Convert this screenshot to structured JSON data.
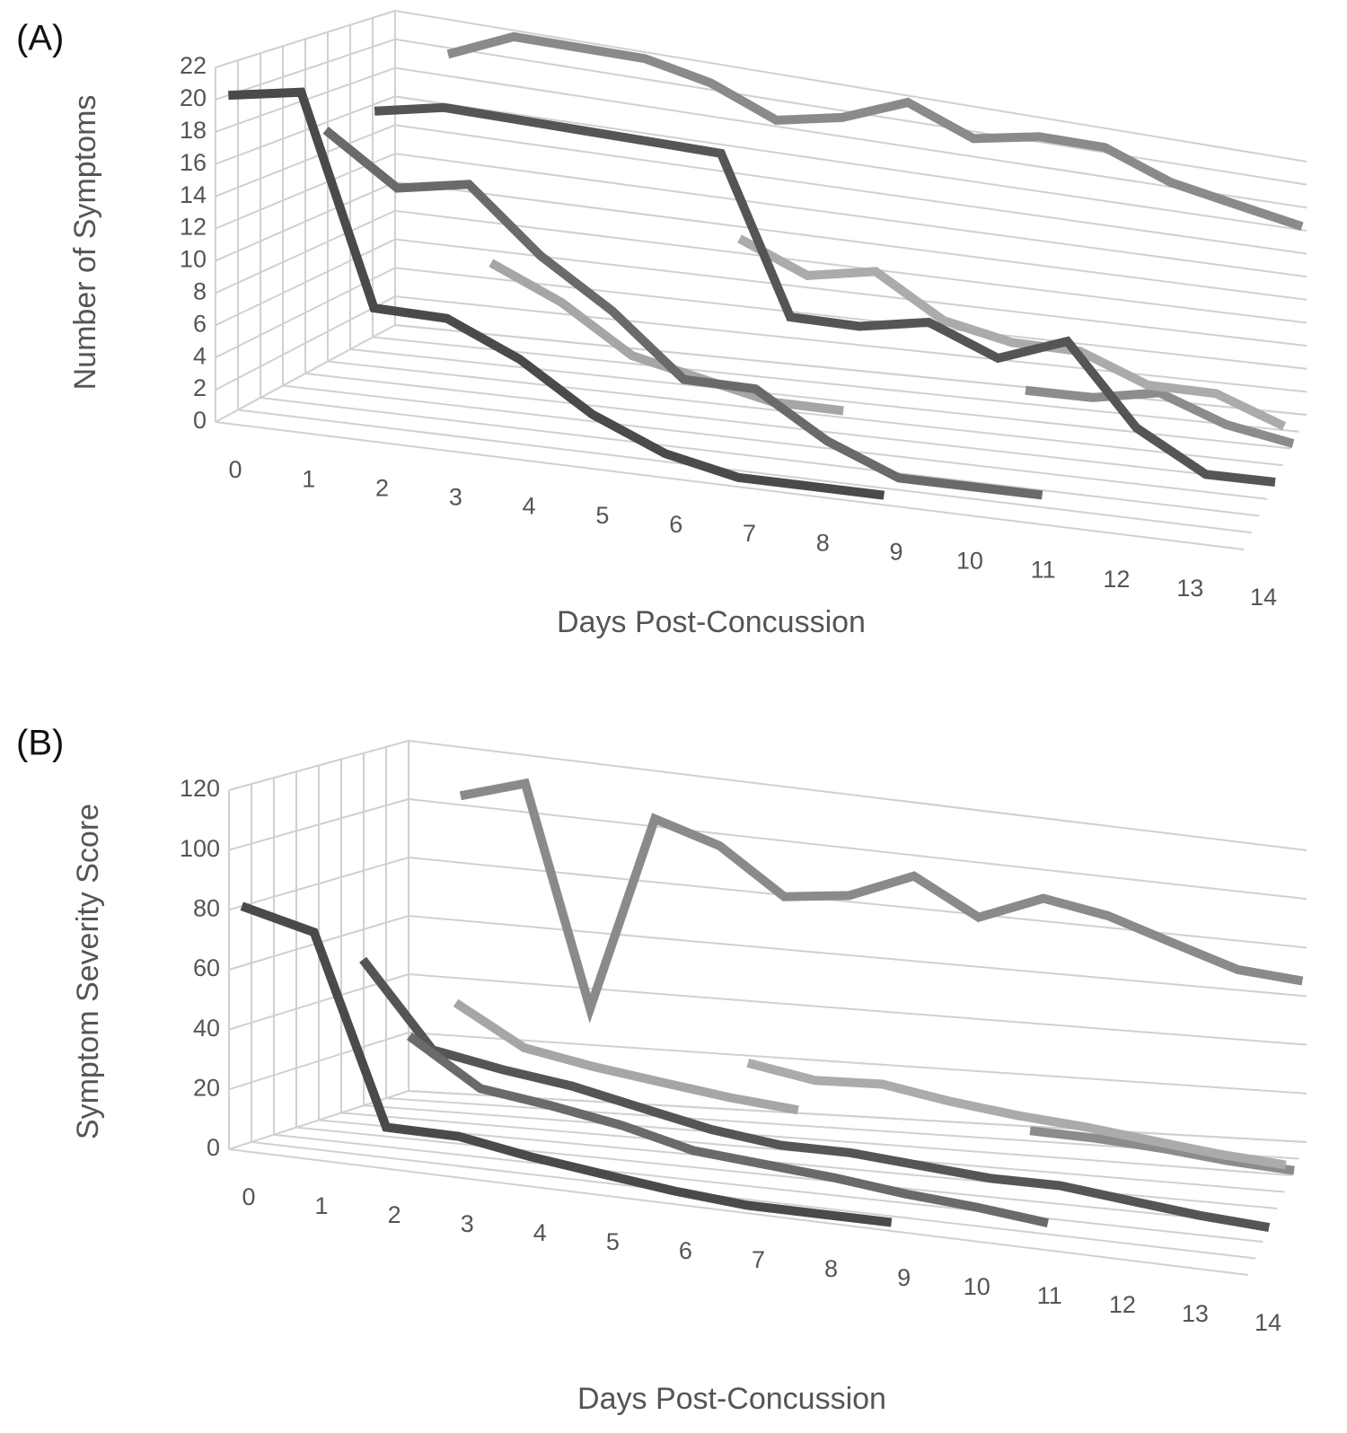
{
  "chart_data": [
    {
      "type": "line",
      "panel_label": "(A)",
      "y_label": "Number of Symptoms",
      "x_label": "Days Post-Concussion",
      "x": [
        0,
        1,
        2,
        3,
        4,
        5,
        6,
        7,
        8,
        9,
        10,
        11,
        12,
        13,
        14
      ],
      "xlim": [
        0,
        14
      ],
      "xticks": [
        0,
        1,
        2,
        3,
        4,
        5,
        6,
        7,
        8,
        9,
        10,
        11,
        12,
        13,
        14
      ],
      "ylim": [
        0,
        22
      ],
      "yticks": [
        0,
        2,
        4,
        6,
        8,
        10,
        12,
        14,
        16,
        18,
        20,
        22
      ],
      "grid": true,
      "series": [
        {
          "color": "#4a4a4a",
          "values": [
            20,
            21,
            8,
            8,
            6,
            3,
            1,
            0,
            0,
            0,
            null,
            null,
            null,
            null,
            null
          ]
        },
        {
          "color": "#6a6a6a",
          "values": [
            null,
            18,
            15,
            16,
            12,
            9,
            5,
            5,
            2,
            0,
            0,
            0,
            null,
            null,
            null
          ]
        },
        {
          "color": "#a6a6a6",
          "values": [
            null,
            null,
            null,
            10,
            8,
            5,
            4,
            3,
            3,
            null,
            null,
            null,
            null,
            null,
            null
          ]
        },
        {
          "color": "#555555",
          "values": [
            null,
            18,
            19,
            19,
            19,
            19,
            19,
            8,
            8,
            9,
            7,
            9,
            3,
            0,
            0
          ]
        },
        {
          "color": "#ababab",
          "values": [
            null,
            null,
            null,
            null,
            null,
            null,
            12,
            10,
            11,
            8,
            7,
            7,
            5,
            5,
            3
          ]
        },
        {
          "color": "#8c8c8c",
          "values": [
            null,
            null,
            null,
            null,
            null,
            null,
            null,
            null,
            null,
            null,
            2,
            2,
            3,
            1,
            0
          ]
        },
        {
          "color": "#8a8a8a",
          "values": [
            null,
            20,
            22,
            22,
            22,
            21,
            19,
            20,
            22,
            20,
            21,
            21,
            19,
            18,
            17
          ]
        }
      ]
    },
    {
      "type": "line",
      "panel_label": "(B)",
      "y_label": "Symptom Severity Score",
      "x_label": "Days Post-Concussion",
      "x": [
        0,
        1,
        2,
        3,
        4,
        5,
        6,
        7,
        8,
        9,
        10,
        11,
        12,
        13,
        14
      ],
      "xlim": [
        0,
        14
      ],
      "xticks": [
        0,
        1,
        2,
        3,
        4,
        5,
        6,
        7,
        8,
        9,
        10,
        11,
        12,
        13,
        14
      ],
      "ylim": [
        0,
        120
      ],
      "yticks": [
        0,
        20,
        40,
        60,
        80,
        100,
        120
      ],
      "grid": true,
      "series": [
        {
          "color": "#4a4a4a",
          "values": [
            80,
            75,
            12,
            12,
            8,
            5,
            2,
            0,
            0,
            0,
            null,
            null,
            null,
            null,
            null
          ]
        },
        {
          "color": "#6a6a6a",
          "values": [
            null,
            null,
            40,
            25,
            22,
            18,
            12,
            10,
            8,
            5,
            3,
            0,
            null,
            null,
            null
          ]
        },
        {
          "color": "#555555",
          "values": [
            null,
            60,
            32,
            28,
            25,
            20,
            15,
            12,
            12,
            10,
            8,
            8,
            5,
            2,
            0
          ]
        },
        {
          "color": "#a6a6a6",
          "values": [
            null,
            null,
            45,
            32,
            28,
            25,
            22,
            20,
            null,
            null,
            null,
            null,
            null,
            null,
            null
          ]
        },
        {
          "color": "#ababab",
          "values": [
            null,
            null,
            null,
            null,
            null,
            null,
            30,
            26,
            27,
            23,
            20,
            18,
            15,
            12,
            10
          ]
        },
        {
          "color": "#8c8c8c",
          "values": [
            null,
            null,
            null,
            null,
            null,
            null,
            null,
            null,
            null,
            null,
            8,
            7,
            5,
            2,
            0
          ]
        },
        {
          "color": "#8a8a8a",
          "values": [
            null,
            105,
            112,
            35,
            105,
            98,
            82,
            85,
            95,
            82,
            92,
            88,
            80,
            72,
            70
          ]
        }
      ]
    }
  ]
}
